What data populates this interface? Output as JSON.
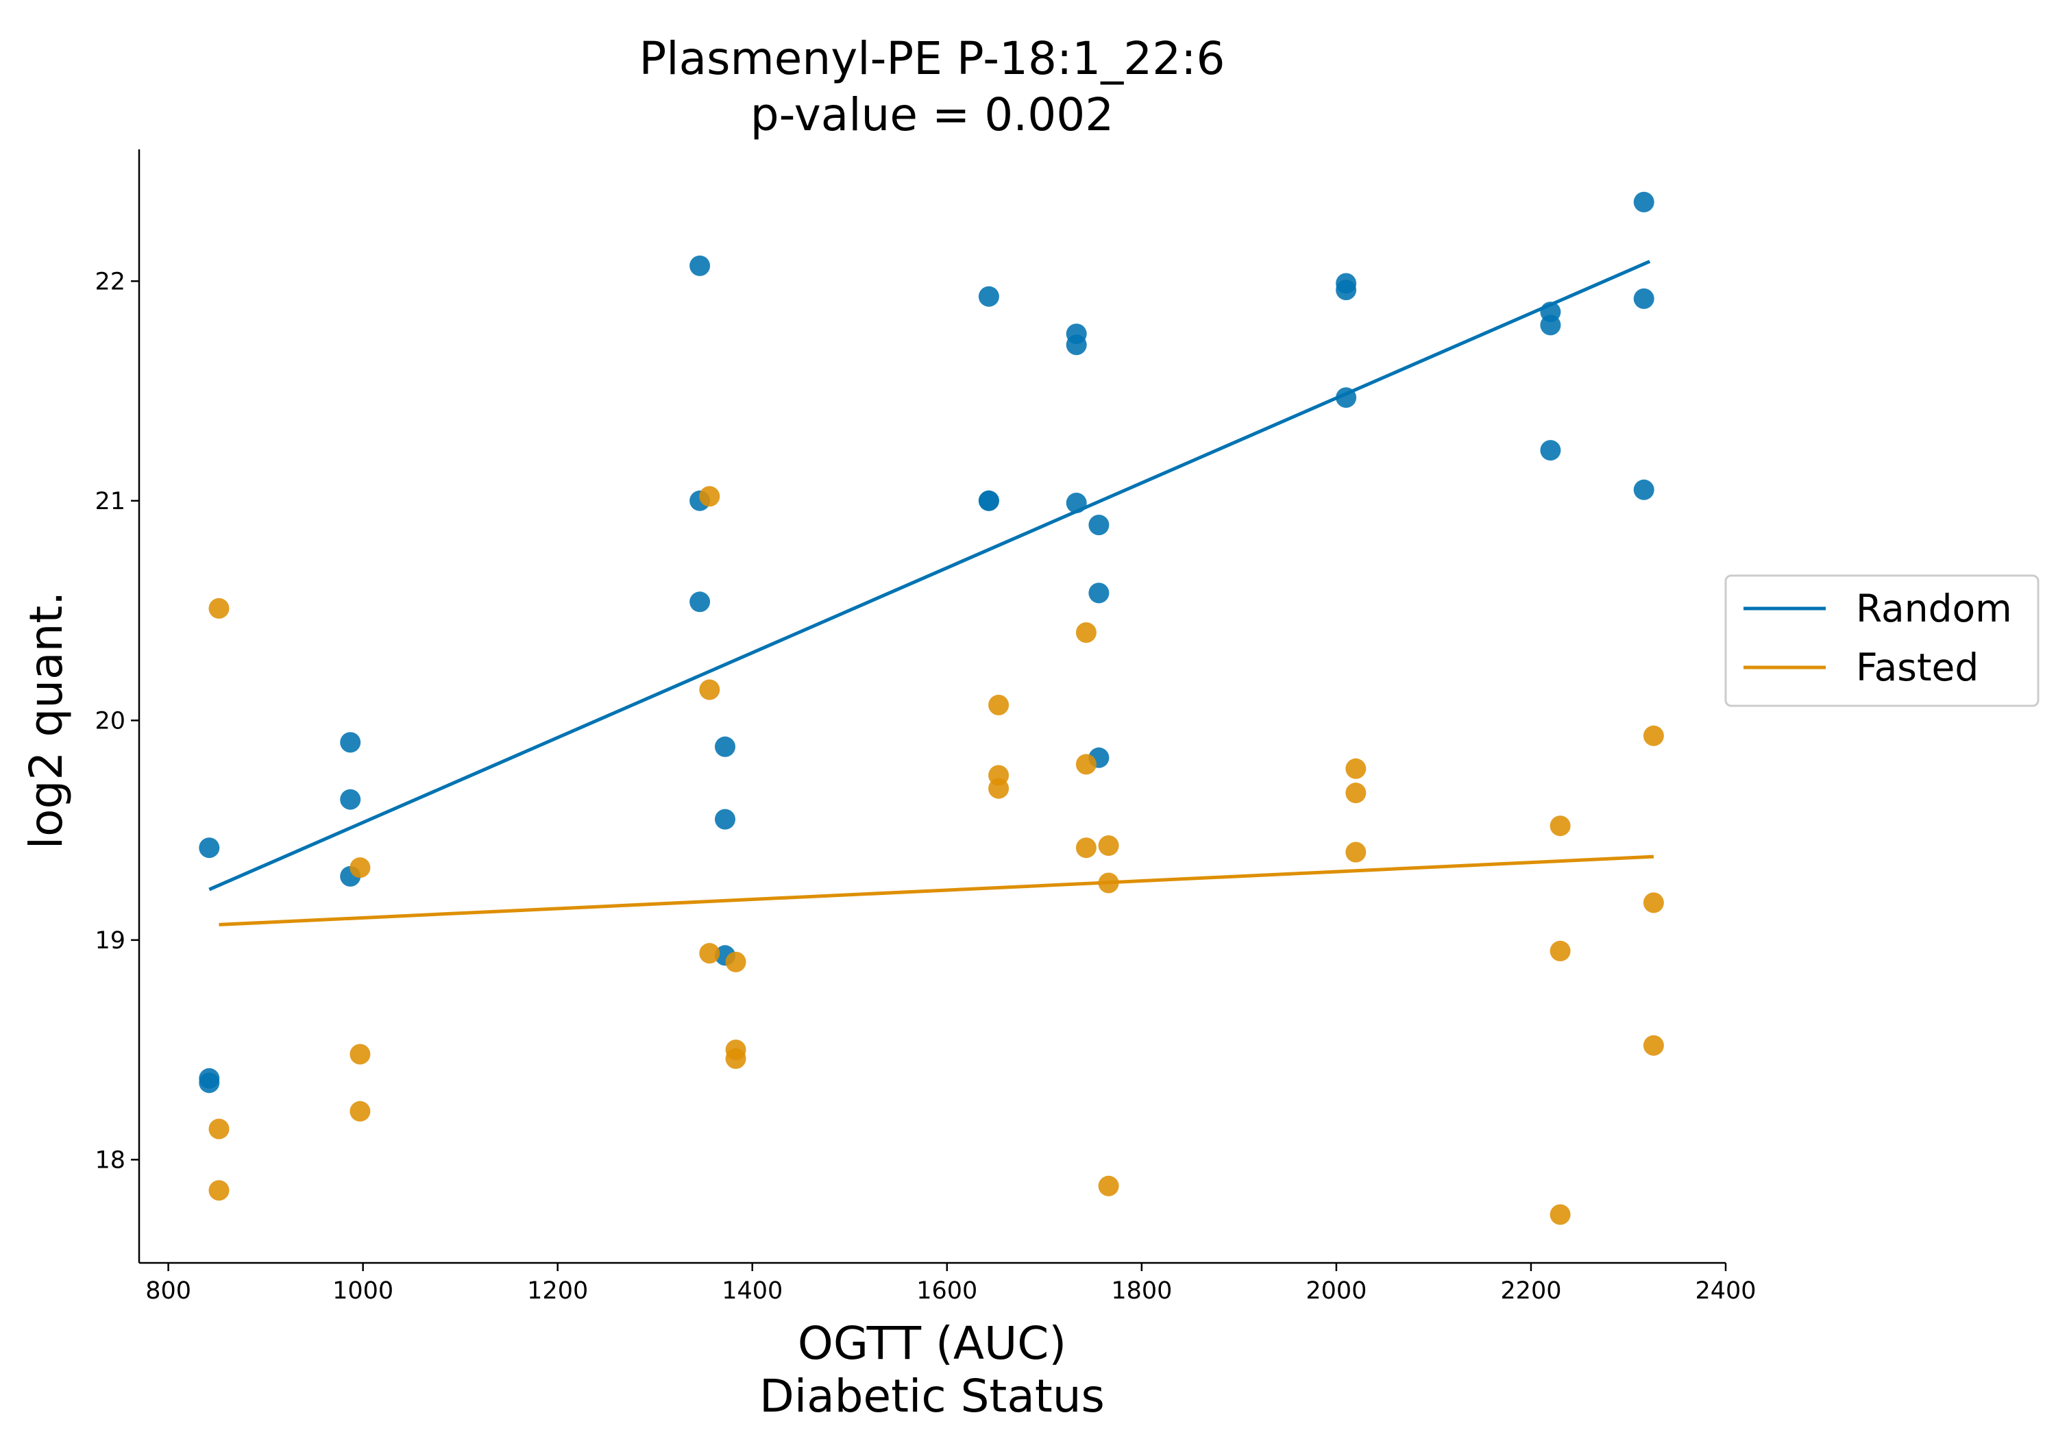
{
  "chart_data": {
    "type": "scatter",
    "title": [
      "Plasmenyl-PE P-18:1_22:6",
      "p-value = 0.002"
    ],
    "xlabel": [
      "OGTT (AUC)",
      "Diabetic Status"
    ],
    "ylabel": "log2 quant.",
    "xlim": [
      770,
      2400
    ],
    "ylim": [
      17.53,
      22.6
    ],
    "xticks": [
      800,
      1000,
      1200,
      1400,
      1600,
      1800,
      2000,
      2200,
      2400
    ],
    "yticks": [
      18,
      19,
      20,
      21,
      22
    ],
    "grid": false,
    "legend_position": "center-right",
    "series": [
      {
        "name": "Random",
        "color": "#0173b2",
        "points": [
          [
            842,
            19.42
          ],
          [
            842,
            18.37
          ],
          [
            842,
            18.35
          ],
          [
            987,
            19.9
          ],
          [
            987,
            19.64
          ],
          [
            987,
            19.29
          ],
          [
            1346,
            22.07
          ],
          [
            1346,
            21.0
          ],
          [
            1346,
            20.54
          ],
          [
            1372,
            19.88
          ],
          [
            1372,
            19.55
          ],
          [
            1372,
            18.93
          ],
          [
            1643,
            21.93
          ],
          [
            1643,
            21.0
          ],
          [
            1643,
            21.0
          ],
          [
            1733,
            21.76
          ],
          [
            1733,
            21.71
          ],
          [
            1733,
            20.99
          ],
          [
            1756,
            20.89
          ],
          [
            1756,
            20.58
          ],
          [
            1756,
            19.83
          ],
          [
            2010,
            21.99
          ],
          [
            2010,
            21.96
          ],
          [
            2010,
            21.47
          ],
          [
            2220,
            21.86
          ],
          [
            2220,
            21.8
          ],
          [
            2220,
            21.23
          ],
          [
            2316,
            22.36
          ],
          [
            2316,
            21.92
          ],
          [
            2316,
            21.05
          ]
        ],
        "fit": [
          [
            842,
            19.23
          ],
          [
            2322,
            22.09
          ]
        ]
      },
      {
        "name": "Fasted",
        "color": "#de8f05",
        "points": [
          [
            852,
            20.51
          ],
          [
            852,
            18.14
          ],
          [
            852,
            17.86
          ],
          [
            997,
            19.33
          ],
          [
            997,
            18.48
          ],
          [
            997,
            18.22
          ],
          [
            1356,
            21.02
          ],
          [
            1356,
            20.14
          ],
          [
            1356,
            18.94
          ],
          [
            1383,
            18.9
          ],
          [
            1383,
            18.5
          ],
          [
            1383,
            18.46
          ],
          [
            1653,
            20.07
          ],
          [
            1653,
            19.75
          ],
          [
            1653,
            19.69
          ],
          [
            1743,
            20.4
          ],
          [
            1743,
            19.8
          ],
          [
            1743,
            19.42
          ],
          [
            1766,
            19.43
          ],
          [
            1766,
            19.26
          ],
          [
            1766,
            17.88
          ],
          [
            2020,
            19.78
          ],
          [
            2020,
            19.67
          ],
          [
            2020,
            19.4
          ],
          [
            2230,
            19.52
          ],
          [
            2230,
            18.95
          ],
          [
            2230,
            17.75
          ],
          [
            2326,
            19.93
          ],
          [
            2326,
            19.17
          ],
          [
            2326,
            18.52
          ]
        ],
        "fit": [
          [
            852,
            19.07
          ],
          [
            2326,
            19.38
          ]
        ]
      }
    ]
  }
}
